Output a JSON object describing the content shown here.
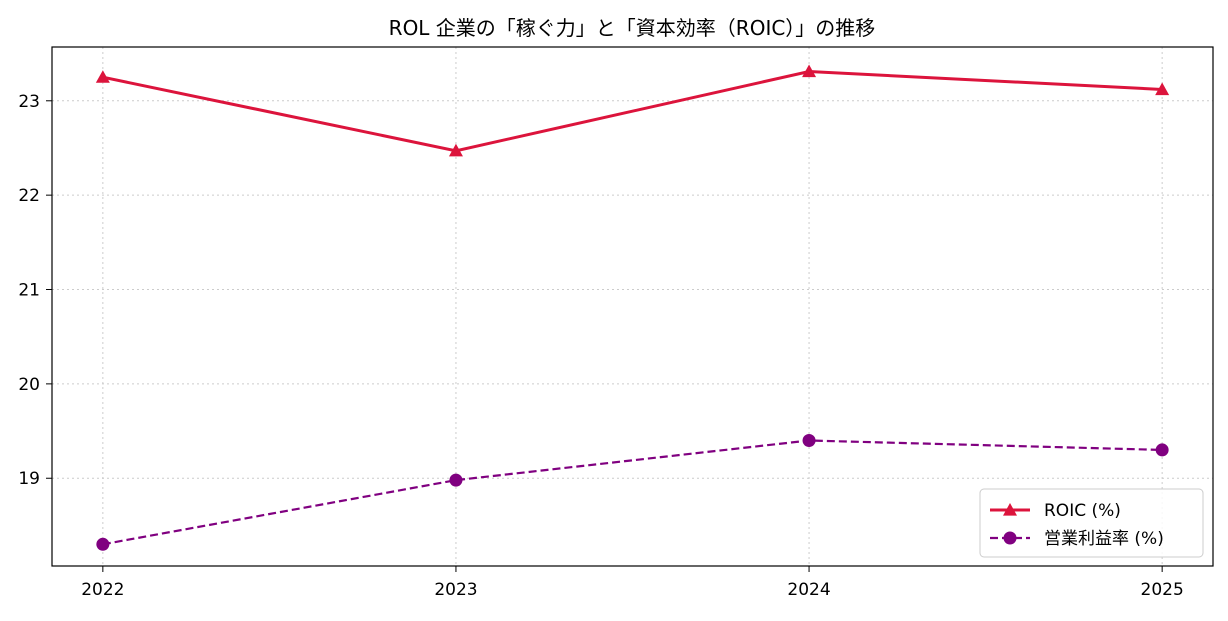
{
  "chart_data": {
    "type": "line",
    "title": "ROL 企業の「稼ぐ力」と「資本効率（ROIC）」の推移",
    "xlabel": "",
    "ylabel": "",
    "categories": [
      "2022",
      "2023",
      "2024",
      "2025"
    ],
    "ylim": [
      18.07,
      23.57
    ],
    "yticks": [
      19,
      20,
      21,
      22,
      23
    ],
    "grid": true,
    "legend_position": "lower-right",
    "series": [
      {
        "name": "ROIC (%)",
        "values": [
          23.25,
          22.47,
          23.31,
          23.12
        ],
        "color": "#dc143c",
        "line_style": "solid",
        "marker": "triangle"
      },
      {
        "name": "営業利益率 (%)",
        "values": [
          18.3,
          18.98,
          19.4,
          19.3
        ],
        "color": "#800080",
        "line_style": "dashed",
        "marker": "circle"
      }
    ]
  }
}
